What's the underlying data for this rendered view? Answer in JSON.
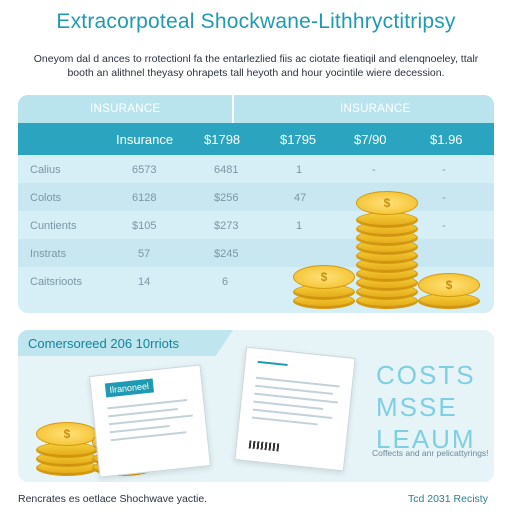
{
  "title": "Extracorpoteal Shockwane-Lithhryctitripsy",
  "subtitle": "Oneyom dal d ances to rrotectionl fa the entarlezlied fiis ac ciotate fieatiqil and elenqnoeley, ttalr booth an alithnel theyasy ohrapets tall heyoth and hour yocintile wiere decession.",
  "table": {
    "top_headers": [
      "INSURANCE",
      "INSURANCE"
    ],
    "header_row": [
      "Insurance",
      "$1798",
      "$1795",
      "$7/90",
      "$1.96"
    ],
    "rows": [
      {
        "label": "Calius",
        "c1": "6573",
        "c2": "6481",
        "c3": "1",
        "c4": "-",
        "c5": "-"
      },
      {
        "label": "Colots",
        "c1": "6128",
        "c2": "$256",
        "c3": "47",
        "c4": "-",
        "c5": "-"
      },
      {
        "label": "Cuntients",
        "c1": "$105",
        "c2": "$273",
        "c3": "1",
        "c4": "-",
        "c5": "-"
      },
      {
        "label": "Instrats",
        "c1": "57",
        "c2": "$245",
        "c3": "",
        "c4": "",
        "c5": ""
      },
      {
        "label": "Caitsrioots",
        "c1": "14",
        "c2": "6",
        "c3": "",
        "c4": "",
        "c5": ""
      }
    ]
  },
  "lower": {
    "banner": "Comersoreed 206 10rriots",
    "doc_tag": "Ilranoneel",
    "costs_lines": [
      "COSTS",
      "MSSE",
      "LEAUM"
    ],
    "costs_caption": "Coffects and anr pelicattyrings!"
  },
  "footer": {
    "left": "Rencrates es oetlace Shochwave yactie.",
    "right": "Tcd 2031 Recisty"
  },
  "colors": {
    "accent": "#1e9bb3",
    "header_bg": "#2ba5bf",
    "panel_bg": "#d6eef5",
    "coin": "#f2bb22"
  },
  "icons": [
    "coin-stack-icon",
    "document-icon"
  ]
}
